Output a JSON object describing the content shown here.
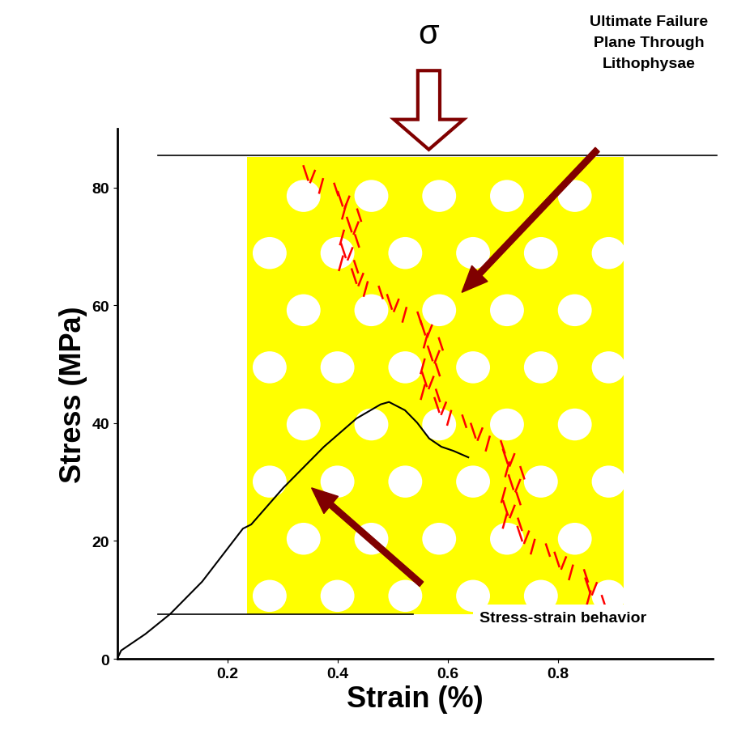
{
  "chart_data": {
    "type": "line",
    "xlabel": "Strain (%)",
    "ylabel": "Stress (MPa)",
    "x": [
      0,
      0.007,
      0.051,
      0.096,
      0.154,
      0.228,
      0.243,
      0.301,
      0.375,
      0.434,
      0.478,
      0.493,
      0.522,
      0.544,
      0.566,
      0.588,
      0.61,
      0.637
    ],
    "values": [
      0,
      1.4,
      4.2,
      7.6,
      13.1,
      22.1,
      22.8,
      29.0,
      36.0,
      40.8,
      43.2,
      43.6,
      42.2,
      40.1,
      37.4,
      36.0,
      35.3,
      34.2
    ],
    "color": "#000000",
    "xlim": [
      0,
      1.08
    ],
    "ylim": [
      0,
      90
    ],
    "xticks": [
      0.2,
      0.4,
      0.6,
      0.8
    ],
    "yticks": [
      0,
      20,
      40,
      60,
      80
    ],
    "annotations": [
      "σ",
      "Ultimate Failure\nPlane Through\nLithophysae",
      "Stress-strain behavior"
    ]
  }
}
